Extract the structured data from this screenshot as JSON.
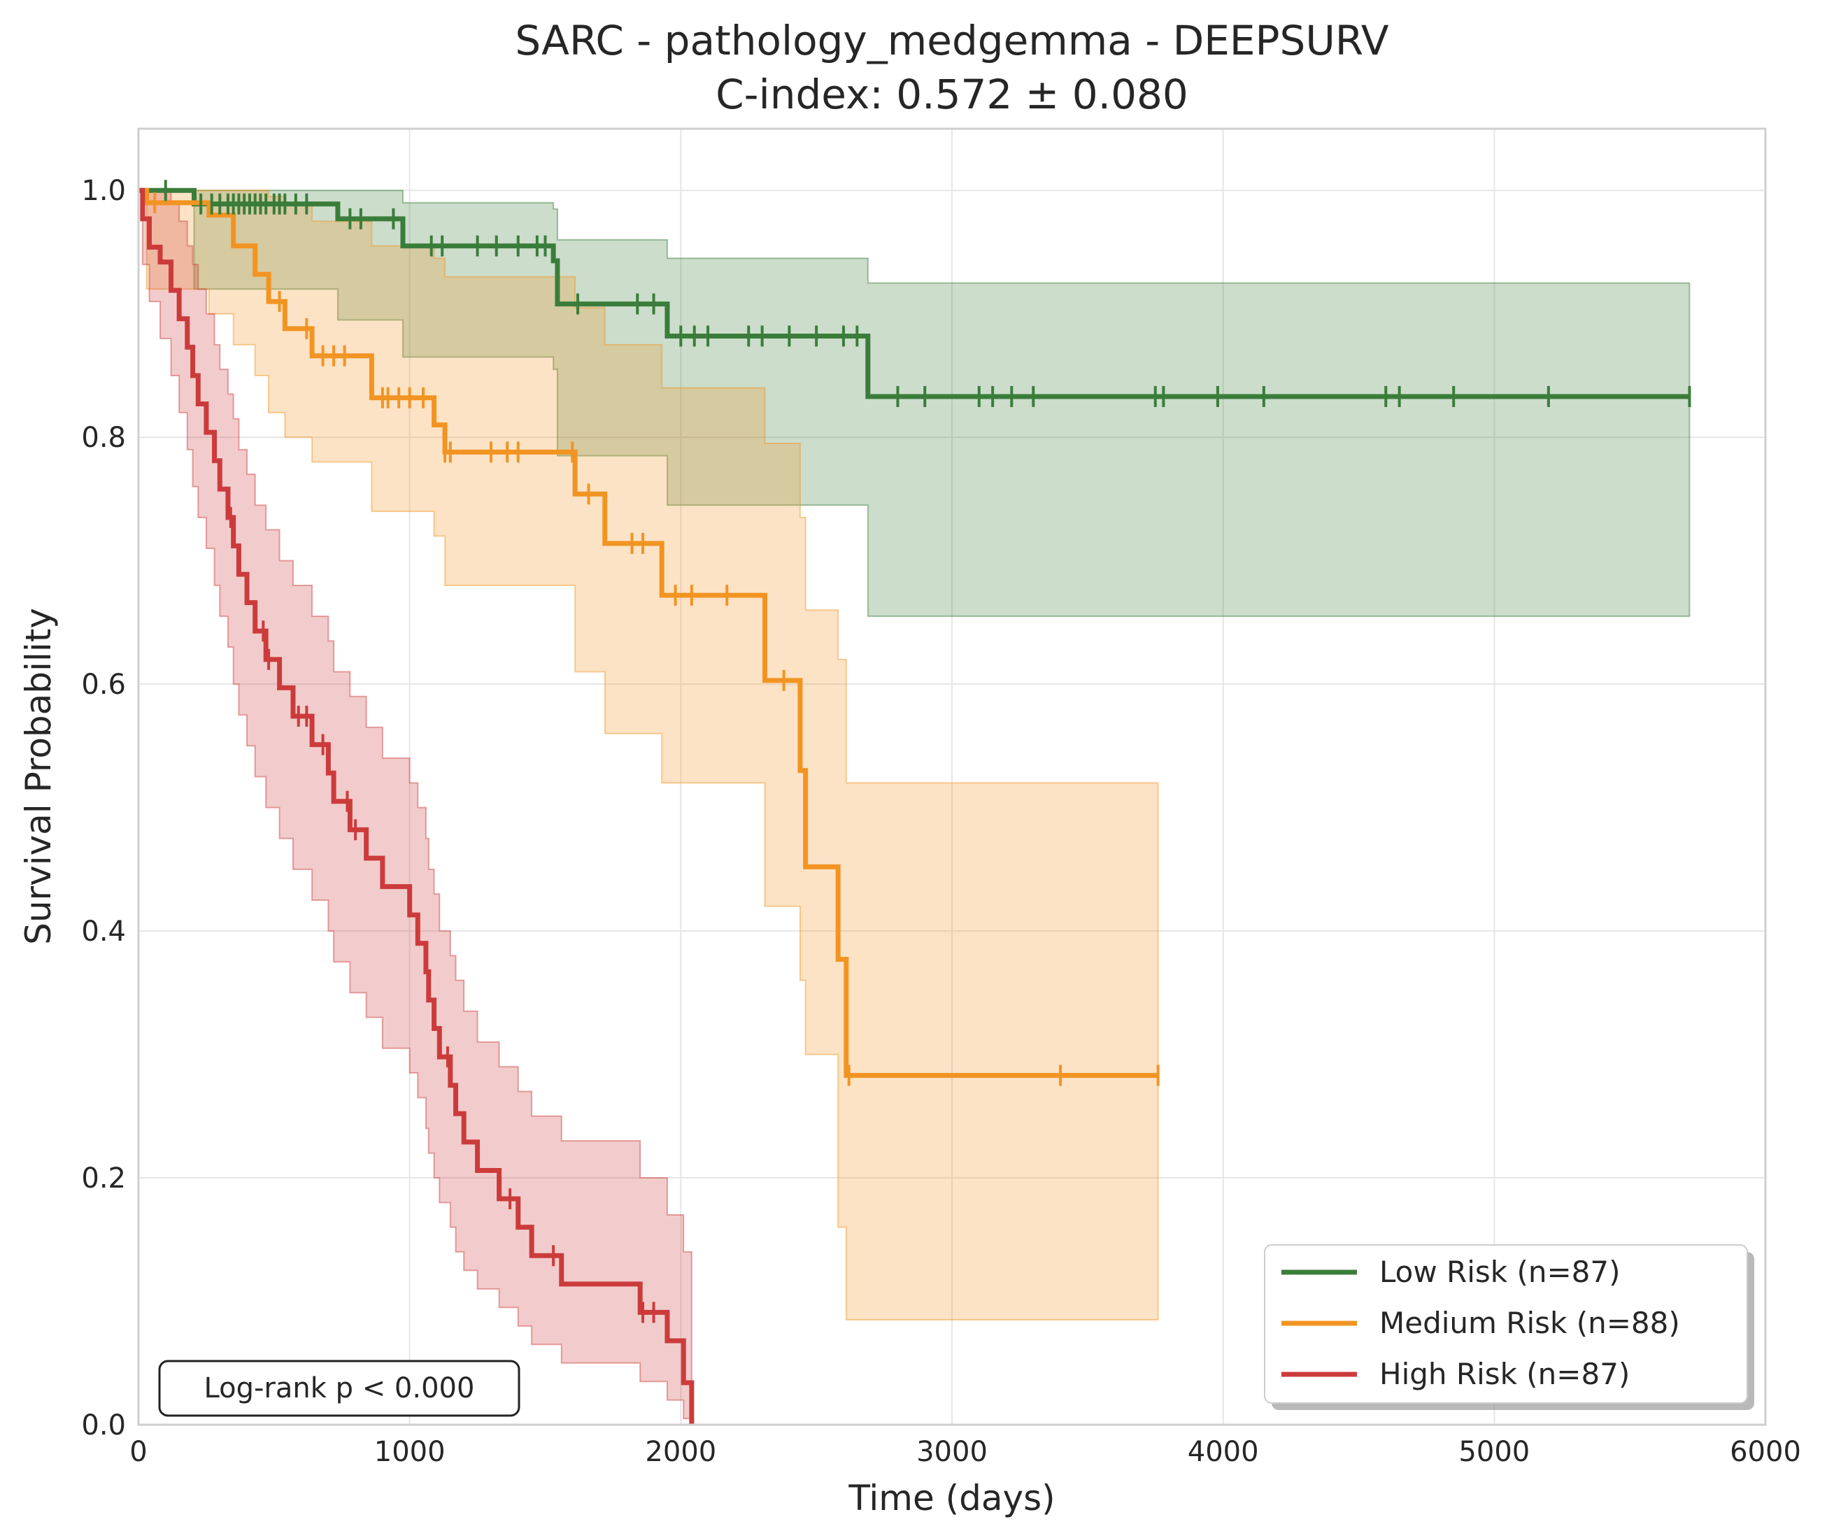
{
  "chart_data": {
    "type": "line",
    "subtype": "kaplan-meier",
    "title": "SARC - pathology_medgemma - DEEPSURV",
    "subtitle": "C-index: 0.572 ± 0.080",
    "xlabel": "Time (days)",
    "ylabel": "Survival Probability",
    "xlim": [
      0,
      6000
    ],
    "ylim": [
      0,
      1.05
    ],
    "x_ticks": [
      0,
      1000,
      2000,
      3000,
      4000,
      5000,
      6000
    ],
    "y_ticks": [
      0.0,
      0.2,
      0.4,
      0.6,
      0.8,
      1.0
    ],
    "x_tick_labels": [
      "0",
      "1000",
      "2000",
      "3000",
      "4000",
      "5000",
      "6000"
    ],
    "y_tick_labels": [
      "0.0",
      "0.2",
      "0.4",
      "0.6",
      "0.8",
      "1.0"
    ],
    "grid": true,
    "legend_position": "bottom-right",
    "annotation": "Log-rank p < 0.000",
    "series": [
      {
        "name": "Low Risk (n=87)",
        "color": "#3a7d3a",
        "x": [
          0,
          205,
          735,
          975,
          1530,
          1545,
          1950,
          2690,
          5720
        ],
        "y": [
          1.0,
          0.989,
          0.977,
          0.955,
          0.943,
          0.908,
          0.882,
          0.833,
          0.833
        ],
        "ci_upper": [
          1.0,
          1.0,
          1.0,
          0.99,
          0.985,
          0.96,
          0.945,
          0.925,
          0.925
        ],
        "ci_lower": [
          1.0,
          0.92,
          0.895,
          0.865,
          0.855,
          0.785,
          0.745,
          0.655,
          0.655
        ],
        "censor_x": [
          100,
          230,
          270,
          300,
          330,
          350,
          370,
          390,
          410,
          430,
          450,
          470,
          500,
          520,
          540,
          580,
          620,
          780,
          820,
          940,
          1080,
          1120,
          1250,
          1320,
          1400,
          1470,
          1500,
          1620,
          1840,
          1900,
          2000,
          2050,
          2100,
          2250,
          2300,
          2400,
          2500,
          2600,
          2650,
          2800,
          2900,
          3100,
          3150,
          3220,
          3300,
          3750,
          3780,
          3980,
          4150,
          4600,
          4650,
          4850,
          5200,
          5720
        ]
      },
      {
        "name": "Medium Risk (n=88)",
        "color": "#f29422",
        "x": [
          0,
          30,
          260,
          350,
          430,
          480,
          540,
          640,
          860,
          1090,
          1130,
          1610,
          1720,
          1930,
          2310,
          2440,
          2460,
          2580,
          2610,
          3760
        ],
        "y": [
          1.0,
          0.99,
          0.98,
          0.955,
          0.932,
          0.91,
          0.888,
          0.866,
          0.832,
          0.81,
          0.788,
          0.754,
          0.714,
          0.672,
          0.603,
          0.53,
          0.452,
          0.377,
          0.283,
          0.283
        ],
        "ci_upper": [
          1.0,
          1.0,
          1.0,
          1.0,
          1.0,
          0.995,
          0.99,
          0.975,
          0.955,
          0.945,
          0.93,
          0.905,
          0.875,
          0.84,
          0.795,
          0.735,
          0.66,
          0.62,
          0.52,
          0.52
        ],
        "ci_lower": [
          1.0,
          0.92,
          0.9,
          0.875,
          0.85,
          0.82,
          0.8,
          0.78,
          0.74,
          0.72,
          0.68,
          0.61,
          0.56,
          0.52,
          0.42,
          0.36,
          0.3,
          0.16,
          0.085,
          0.085
        ],
        "censor_x": [
          60,
          520,
          620,
          680,
          720,
          760,
          900,
          920,
          960,
          1000,
          1050,
          1130,
          1150,
          1300,
          1360,
          1400,
          1600,
          1660,
          1820,
          1860,
          1980,
          2040,
          2170,
          2380,
          2620,
          3400,
          3760
        ]
      },
      {
        "name": "High Risk (n=87)",
        "color": "#cc3b3b",
        "x": [
          0,
          15,
          40,
          80,
          120,
          150,
          180,
          200,
          220,
          250,
          280,
          300,
          330,
          350,
          370,
          400,
          430,
          470,
          520,
          570,
          640,
          700,
          720,
          780,
          840,
          900,
          1000,
          1030,
          1060,
          1070,
          1090,
          1110,
          1150,
          1170,
          1200,
          1250,
          1330,
          1400,
          1450,
          1560,
          1850,
          1950,
          2010,
          2040
        ],
        "y": [
          1.0,
          0.977,
          0.954,
          0.942,
          0.919,
          0.896,
          0.873,
          0.85,
          0.827,
          0.804,
          0.781,
          0.758,
          0.735,
          0.712,
          0.689,
          0.666,
          0.643,
          0.62,
          0.597,
          0.574,
          0.551,
          0.528,
          0.505,
          0.482,
          0.459,
          0.436,
          0.413,
          0.39,
          0.367,
          0.344,
          0.321,
          0.298,
          0.275,
          0.252,
          0.229,
          0.206,
          0.183,
          0.16,
          0.137,
          0.114,
          0.091,
          0.068,
          0.034,
          0.0
        ],
        "ci_upper": [
          1.0,
          1.0,
          1.0,
          1.0,
          0.99,
          0.975,
          0.955,
          0.94,
          0.92,
          0.9,
          0.875,
          0.855,
          0.835,
          0.815,
          0.79,
          0.77,
          0.745,
          0.725,
          0.7,
          0.68,
          0.655,
          0.635,
          0.61,
          0.59,
          0.565,
          0.54,
          0.52,
          0.5,
          0.475,
          0.45,
          0.43,
          0.4,
          0.38,
          0.36,
          0.335,
          0.31,
          0.29,
          0.27,
          0.25,
          0.23,
          0.2,
          0.17,
          0.14,
          0.12
        ],
        "ci_lower": [
          1.0,
          0.94,
          0.91,
          0.88,
          0.85,
          0.82,
          0.79,
          0.76,
          0.735,
          0.71,
          0.68,
          0.655,
          0.63,
          0.6,
          0.575,
          0.55,
          0.525,
          0.5,
          0.475,
          0.45,
          0.425,
          0.4,
          0.375,
          0.35,
          0.33,
          0.305,
          0.285,
          0.265,
          0.24,
          0.22,
          0.2,
          0.18,
          0.16,
          0.14,
          0.125,
          0.11,
          0.095,
          0.08,
          0.065,
          0.05,
          0.035,
          0.02,
          0.005,
          0.0
        ],
        "censor_x": [
          340,
          460,
          480,
          590,
          620,
          680,
          770,
          800,
          1140,
          1370,
          1530,
          1860,
          1900
        ]
      }
    ]
  }
}
